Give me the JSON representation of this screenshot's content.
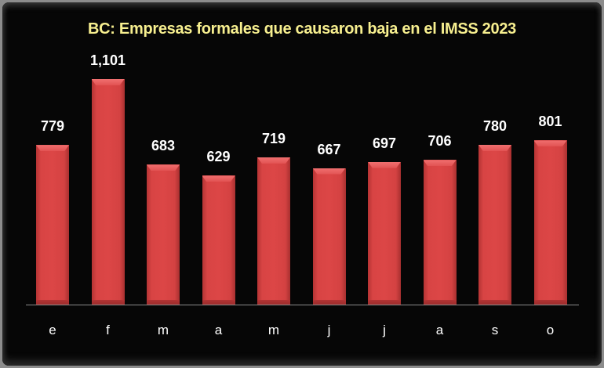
{
  "chart_data": {
    "type": "bar",
    "title": "BC: Empresas formales que causaron baja en el IMSS 2023",
    "categories": [
      "e",
      "f",
      "m",
      "a",
      "m",
      "j",
      "j",
      "a",
      "s",
      "o"
    ],
    "values": [
      779,
      1101,
      683,
      629,
      719,
      667,
      697,
      706,
      780,
      801
    ],
    "labels": [
      "779",
      "1,101",
      "683",
      "629",
      "719",
      "667",
      "697",
      "706",
      "780",
      "801"
    ],
    "xlabel": "",
    "ylabel": "",
    "ylim": [
      0,
      1101
    ],
    "grid": false,
    "legend": "none",
    "colors": {
      "bar": "#d84444",
      "title": "#f7ef8f",
      "background": "#060606",
      "labels": "#ffffff"
    }
  }
}
